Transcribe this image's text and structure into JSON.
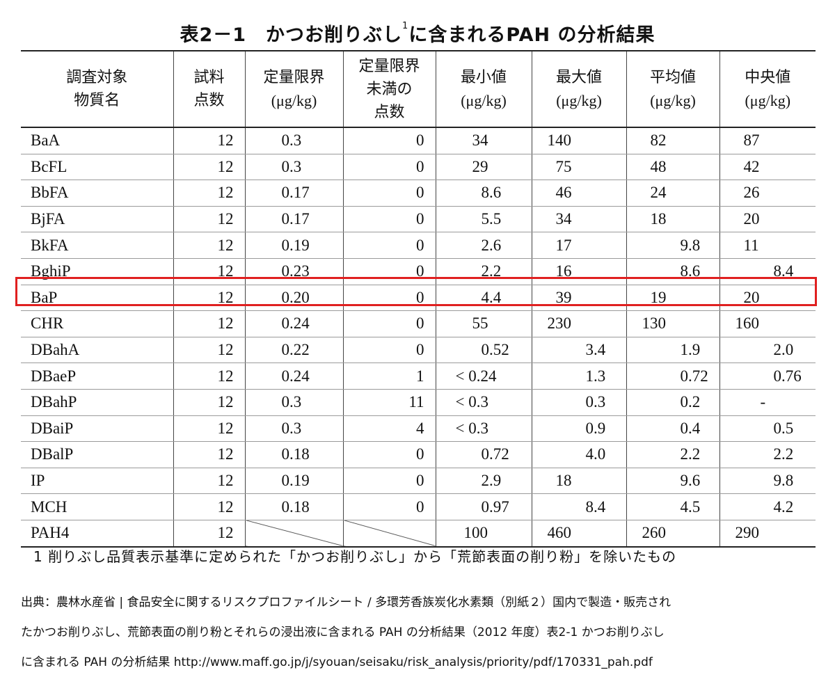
{
  "title": {
    "prefix": "表2－1　かつお削りぶし",
    "sup": "1",
    "suffix": "に含まれるPAH の分析結果"
  },
  "table": {
    "headers": [
      {
        "lines": [
          "調査対象",
          "物質名"
        ],
        "unit": ""
      },
      {
        "lines": [
          "試料",
          "点数"
        ],
        "unit": ""
      },
      {
        "lines": [
          "定量限界"
        ],
        "unit": "(μg/kg)"
      },
      {
        "lines": [
          "定量限界",
          "未満の",
          "点数"
        ],
        "unit": ""
      },
      {
        "lines": [
          "最小値"
        ],
        "unit": "(μg/kg)"
      },
      {
        "lines": [
          "最大値"
        ],
        "unit": "(μg/kg)"
      },
      {
        "lines": [
          "平均値"
        ],
        "unit": "(μg/kg)"
      },
      {
        "lines": [
          "中央値"
        ],
        "unit": "(μg/kg)"
      }
    ],
    "rows": [
      [
        "BaA",
        "12",
        "0.3",
        "0",
        "34",
        "140",
        "82",
        "87"
      ],
      [
        "BcFL",
        "12",
        "0.3",
        "0",
        "29",
        "75",
        "48",
        "42"
      ],
      [
        "BbFA",
        "12",
        "0.17",
        "0",
        "8.6",
        "46",
        "24",
        "26"
      ],
      [
        "BjFA",
        "12",
        "0.17",
        "0",
        "5.5",
        "34",
        "18",
        "20"
      ],
      [
        "BkFA",
        "12",
        "0.19",
        "0",
        "2.6",
        "17",
        "9.8",
        "11"
      ],
      [
        "BghiP",
        "12",
        "0.23",
        "0",
        "2.2",
        "16",
        "8.6",
        "8.4"
      ],
      [
        "BaP",
        "12",
        "0.20",
        "0",
        "4.4",
        "39",
        "19",
        "20"
      ],
      [
        "CHR",
        "12",
        "0.24",
        "0",
        "55",
        "230",
        "130",
        "160"
      ],
      [
        "DBahA",
        "12",
        "0.22",
        "0",
        "0.52",
        "3.4",
        "1.9",
        "2.0"
      ],
      [
        "DBaeP",
        "12",
        "0.24",
        "1",
        "< 0.24",
        "1.3",
        "0.72",
        "0.76"
      ],
      [
        "DBahP",
        "12",
        "0.3",
        "11",
        "< 0.3",
        "0.3",
        "0.2",
        "-"
      ],
      [
        "DBaiP",
        "12",
        "0.3",
        "4",
        "< 0.3",
        "0.9",
        "0.4",
        "0.5"
      ],
      [
        "DBalP",
        "12",
        "0.18",
        "0",
        "0.72",
        "4.0",
        "2.2",
        "2.2"
      ],
      [
        "IP",
        "12",
        "0.19",
        "0",
        "2.9",
        "18",
        "9.6",
        "9.8"
      ],
      [
        "MCH",
        "12",
        "0.18",
        "0",
        "0.97",
        "8.4",
        "4.5",
        "4.2"
      ],
      [
        "PAH4",
        "12",
        "",
        "",
        "100",
        "460",
        "260",
        "290"
      ]
    ],
    "highlighted_row": "BaP",
    "highlight_color": "#e02020"
  },
  "footnote": "1 削りぶし品質表示基準に定められた「かつお削りぶし」から「荒節表面の削り粉」を除いたもの",
  "source_lines": [
    "出典：農林水産省 | 食品安全に関するリスクプロファイルシート / 多環芳香族炭化水素類（別紙２）国内で製造・販売され",
    "たかつお削りぶし、荒節表面の削り粉とそれらの浸出液に含まれる PAH の分析結果（2012 年度）表2-1 かつお削りぶし",
    "に含まれる PAH の分析結果 http://www.maff.go.jp/j/syouan/seisaku/risk_analysis/priority/pdf/170331_pah.pdf"
  ]
}
